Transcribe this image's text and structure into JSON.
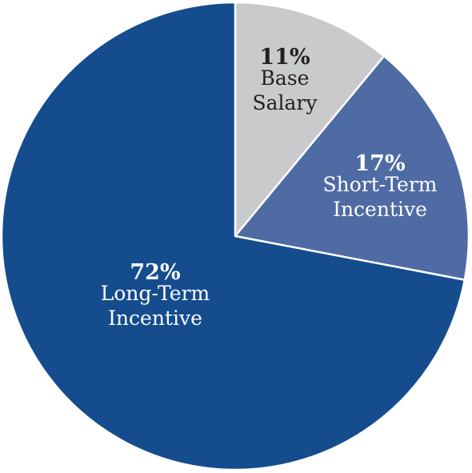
{
  "chart_data": {
    "type": "pie",
    "start_angle_deg": 0,
    "direction": "clockwise",
    "slices": [
      {
        "label_lines": [
          "Base",
          "Salary"
        ],
        "value": 11,
        "value_label": "11%",
        "color": "#c9cacc",
        "text_color": "#231f20"
      },
      {
        "label_lines": [
          "Short-Term",
          "Incentive"
        ],
        "value": 17,
        "value_label": "17%",
        "color": "#4f6ba3",
        "text_color": "#ffffff"
      },
      {
        "label_lines": [
          "Long-Term",
          "Incentive"
        ],
        "value": 72,
        "value_label": "72%",
        "color": "#154c8e",
        "text_color": "#ffffff"
      }
    ]
  }
}
